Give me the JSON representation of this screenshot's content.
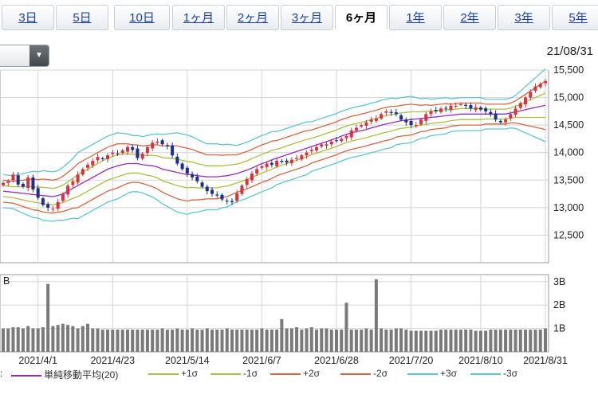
{
  "tabs": [
    {
      "label": "3日",
      "active": false
    },
    {
      "label": "5日",
      "active": false
    },
    {
      "label": "10日",
      "active": false
    },
    {
      "label": "1ヶ月",
      "active": false
    },
    {
      "label": "2ヶ月",
      "active": false
    },
    {
      "label": "3ヶ月",
      "active": false
    },
    {
      "label": "6ヶ月",
      "active": true
    },
    {
      "label": "1年",
      "active": false
    },
    {
      "label": "2年",
      "active": false
    },
    {
      "label": "3年",
      "active": false
    },
    {
      "label": "5年",
      "active": false
    }
  ],
  "dropdown": {
    "arrow": "▼"
  },
  "date_label": "21/08/31",
  "legend_prefix": ":",
  "legend": [
    {
      "label": "単純移動平均(20)",
      "color": "#9a28c8"
    },
    {
      "label": "+1σ",
      "color": "#a8c23a"
    },
    {
      "label": "-1σ",
      "color": "#a8c23a"
    },
    {
      "label": "+2σ",
      "color": "#e0643c"
    },
    {
      "label": "-2σ",
      "color": "#e0643c"
    },
    {
      "label": "+3σ",
      "color": "#5ac8d8"
    },
    {
      "label": "-3σ",
      "color": "#5ac8d8"
    }
  ],
  "colors": {
    "up": "#d8323c",
    "down": "#1c2f8c",
    "volume": "#7a7a7a",
    "grid": "#d4d4d4"
  },
  "chart_data": [
    {
      "type": "candlestick",
      "ylim": [
        12000,
        15500
      ],
      "yticks": [
        12500,
        13000,
        13500,
        14000,
        14500,
        15000,
        15500
      ],
      "ytick_labels": [
        "12,500",
        "13,000",
        "13,500",
        "14,000",
        "14,500",
        "15,000",
        "15,500"
      ],
      "grid": true,
      "close_series": [
        13450,
        13480,
        13600,
        13420,
        13380,
        13550,
        13330,
        13180,
        13050,
        13000,
        12980,
        13100,
        13250,
        13400,
        13480,
        13600,
        13700,
        13780,
        13850,
        13920,
        13880,
        13950,
        14000,
        13980,
        14040,
        14100,
        14050,
        13900,
        13980,
        14100,
        14180,
        14200,
        14150,
        14120,
        13950,
        13800,
        13700,
        13620,
        13550,
        13480,
        13380,
        13300,
        13250,
        13220,
        13150,
        13120,
        13100,
        13260,
        13400,
        13520,
        13620,
        13700,
        13750,
        13800,
        13780,
        13850,
        13830,
        13820,
        13870,
        13900,
        13950,
        14000,
        14050,
        14100,
        14150,
        14150,
        14200,
        14220,
        14250,
        14300,
        14400,
        14450,
        14500,
        14550,
        14600,
        14620,
        14700,
        14750,
        14720,
        14700,
        14600,
        14550,
        14500,
        14500,
        14600,
        14700,
        14750,
        14750,
        14800,
        14800,
        14850,
        14850,
        14880,
        14850,
        14800,
        14820,
        14780,
        14750,
        14700,
        14600,
        14550,
        14600,
        14700,
        14800,
        14900,
        15000,
        15100,
        15200,
        15250,
        15300
      ],
      "moving_average_20": [
        13300,
        13290,
        13280,
        13270,
        13260,
        13250,
        13240,
        13230,
        13220,
        13210,
        13200,
        13220,
        13250,
        13300,
        13350,
        13400,
        13450,
        13500,
        13550,
        13600,
        13650,
        13700,
        13730,
        13760,
        13780,
        13800,
        13800,
        13800,
        13780,
        13770,
        13760,
        13740,
        13700,
        13680,
        13660,
        13640,
        13620,
        13600,
        13600,
        13580,
        13570,
        13560,
        13560,
        13560,
        13570,
        13580,
        13600,
        13620,
        13650,
        13680,
        13720,
        13760,
        13800,
        13830,
        13870,
        13900,
        13930,
        13960,
        13990,
        14020,
        14050,
        14080,
        14110,
        14140,
        14170,
        14200,
        14230,
        14260,
        14300,
        14330,
        14360,
        14380,
        14400,
        14420,
        14450,
        14470,
        14500,
        14520,
        14540,
        14560,
        14580,
        14590,
        14600,
        14610,
        14620,
        14630,
        14640,
        14650,
        14660,
        14670,
        14680,
        14690,
        14700,
        14700,
        14700,
        14700,
        14700,
        14700,
        14700,
        14700,
        14700,
        14700,
        14720,
        14740,
        14760,
        14780,
        14800,
        14820,
        14840,
        14860
      ],
      "bollinger_sigma": [
        100,
        100,
        100,
        110,
        120,
        130,
        140,
        140,
        150,
        150,
        150,
        150,
        160,
        170,
        180,
        200,
        200,
        200,
        200,
        200,
        200,
        200,
        200,
        200,
        190,
        180,
        170,
        170,
        170,
        180,
        190,
        200,
        210,
        220,
        230,
        240,
        240,
        240,
        230,
        220,
        210,
        200,
        200,
        200,
        190,
        190,
        180,
        170,
        170,
        170,
        170,
        170,
        170,
        170,
        170,
        160,
        160,
        160,
        160,
        160,
        160,
        160,
        150,
        150,
        150,
        150,
        150,
        150,
        150,
        150,
        150,
        150,
        150,
        150,
        150,
        150,
        150,
        150,
        150,
        140,
        140,
        140,
        140,
        130,
        120,
        120,
        110,
        110,
        110,
        110,
        100,
        100,
        100,
        100,
        100,
        100,
        100,
        90,
        90,
        90,
        90,
        90,
        90,
        100,
        120,
        140,
        160,
        180,
        200,
        220
      ]
    },
    {
      "type": "bar",
      "name": "volume",
      "ylim": [
        0,
        3.3
      ],
      "yticks": [
        1,
        2,
        3
      ],
      "ytick_labels": [
        "1B",
        "2B",
        "3B"
      ],
      "values": [
        1.0,
        1.0,
        1.05,
        1.05,
        1.0,
        1.1,
        1.0,
        1.0,
        1.05,
        2.9,
        1.1,
        1.15,
        1.2,
        1.15,
        1.1,
        1.0,
        1.1,
        1.2,
        1.0,
        1.0,
        0.95,
        0.95,
        0.95,
        0.95,
        0.95,
        0.95,
        0.95,
        0.95,
        0.95,
        0.95,
        0.95,
        0.95,
        1.0,
        0.95,
        0.95,
        1.0,
        0.95,
        0.95,
        1.0,
        0.95,
        0.95,
        1.0,
        0.95,
        0.95,
        0.95,
        1.0,
        0.95,
        0.95,
        0.95,
        0.95,
        0.95,
        0.95,
        1.0,
        0.95,
        0.95,
        0.95,
        1.4,
        1.0,
        1.0,
        1.05,
        0.95,
        1.0,
        1.05,
        0.95,
        1.0,
        1.0,
        0.95,
        0.95,
        0.95,
        2.1,
        0.95,
        0.95,
        0.95,
        1.0,
        0.95,
        3.1,
        1.0,
        0.95,
        0.95,
        1.0,
        1.0,
        0.95,
        0.9,
        0.9,
        0.9,
        0.9,
        0.9,
        0.9,
        0.95,
        0.95,
        0.95,
        0.95,
        0.95,
        0.95,
        0.95,
        0.9,
        0.9,
        0.9,
        0.95,
        0.95,
        0.95,
        0.95,
        0.95,
        0.95,
        0.95,
        0.95,
        0.95,
        0.95,
        0.95,
        1.0
      ],
      "x_tick_labels": [
        "2021/4/1",
        "2021/4/23",
        "2021/5/14",
        "2021/6/7",
        "2021/6/28",
        "2021/7/20",
        "2021/8/10",
        "2021/8/31"
      ]
    }
  ]
}
